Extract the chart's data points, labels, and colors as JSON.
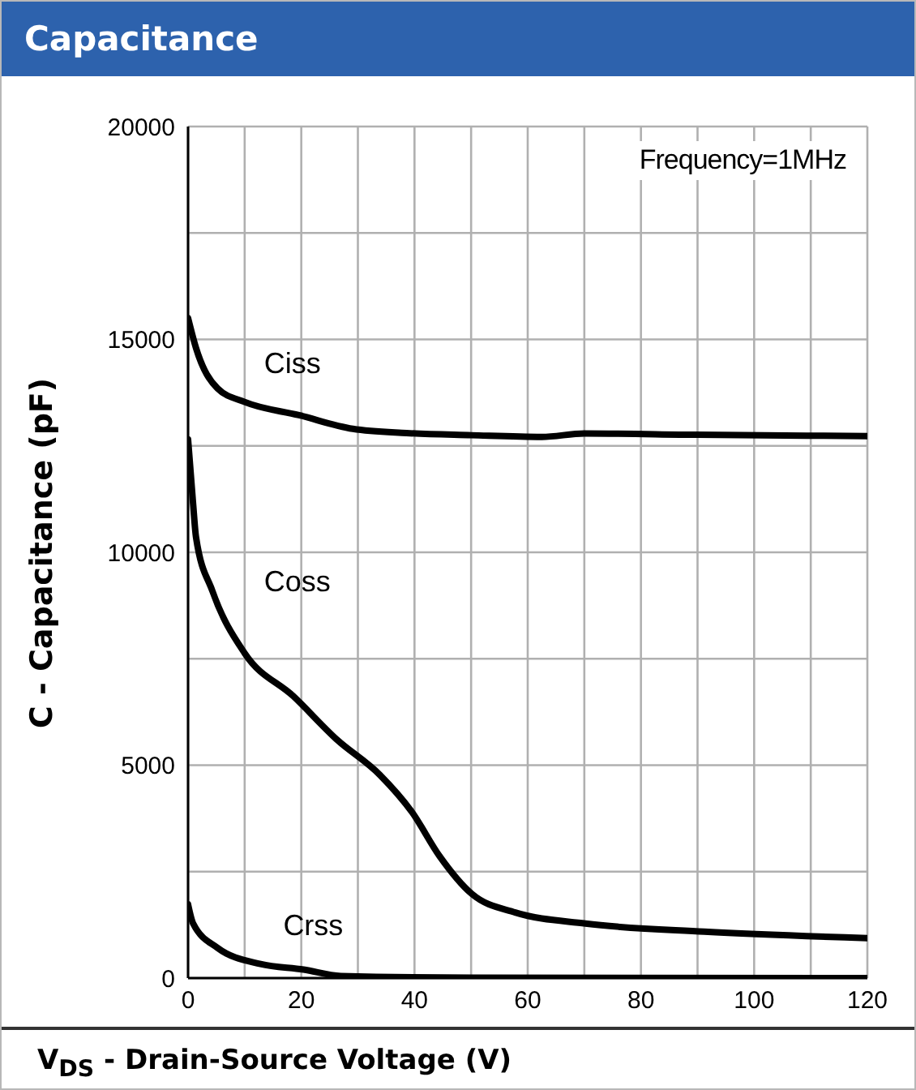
{
  "chart_data": {
    "type": "line",
    "title": "Capacitance",
    "xlabel": "V$_{DS}$ - Drain-Source Voltage (V)",
    "ylabel": "C - Capacitance (pF)",
    "annotations": [
      "Frequency=1MHz"
    ],
    "xlim": [
      0,
      120
    ],
    "xticks": [
      0,
      {
        "value": 10,
        "label": null
      },
      20,
      {
        "value": 30,
        "label": null
      },
      40,
      {
        "value": 50,
        "label": null
      },
      60,
      {
        "value": 70,
        "label": null
      },
      80,
      {
        "value": 90,
        "label": null
      },
      100,
      {
        "value": 110,
        "label": null
      },
      120
    ],
    "ylim": [
      0,
      20000
    ],
    "yticks": [
      0,
      {
        "value": 2500,
        "label": null
      },
      5000,
      {
        "value": 7500,
        "label": null
      },
      10000,
      {
        "value": 12500,
        "label": null
      },
      15000,
      {
        "value": 17500,
        "label": null
      },
      20000
    ],
    "grid": true,
    "marker": "none",
    "line_style": "solid",
    "series": [
      {
        "name": "Ciss",
        "color": "#000000",
        "x": [
          0,
          1.4,
          5.2,
          10,
          19.6,
          29.1,
          38.6,
          50,
          62.5,
          70,
          90,
          120
        ],
        "values": [
          15500,
          14800,
          13850,
          13530,
          13220,
          12900,
          12800,
          12750,
          12710,
          12790,
          12760,
          12730
        ]
      },
      {
        "name": "Coss",
        "color": "#000000",
        "x": [
          0,
          0.9,
          1.4,
          4.3,
          10,
          18.6,
          26.3,
          33.9,
          39.6,
          44.4,
          50.1,
          57.8,
          70.2,
          91.2,
          120
        ],
        "values": [
          12650,
          11120,
          10360,
          9090,
          7630,
          6620,
          5600,
          4770,
          3890,
          2870,
          1980,
          1540,
          1280,
          1090,
          940
        ]
      },
      {
        "name": "Crss",
        "color": "#000000",
        "x": [
          0,
          0.9,
          5.2,
          12.8,
          20.4,
          27,
          50,
          120
        ],
        "values": [
          1730,
          1280,
          710,
          330,
          200,
          50,
          10,
          0
        ]
      }
    ]
  }
}
